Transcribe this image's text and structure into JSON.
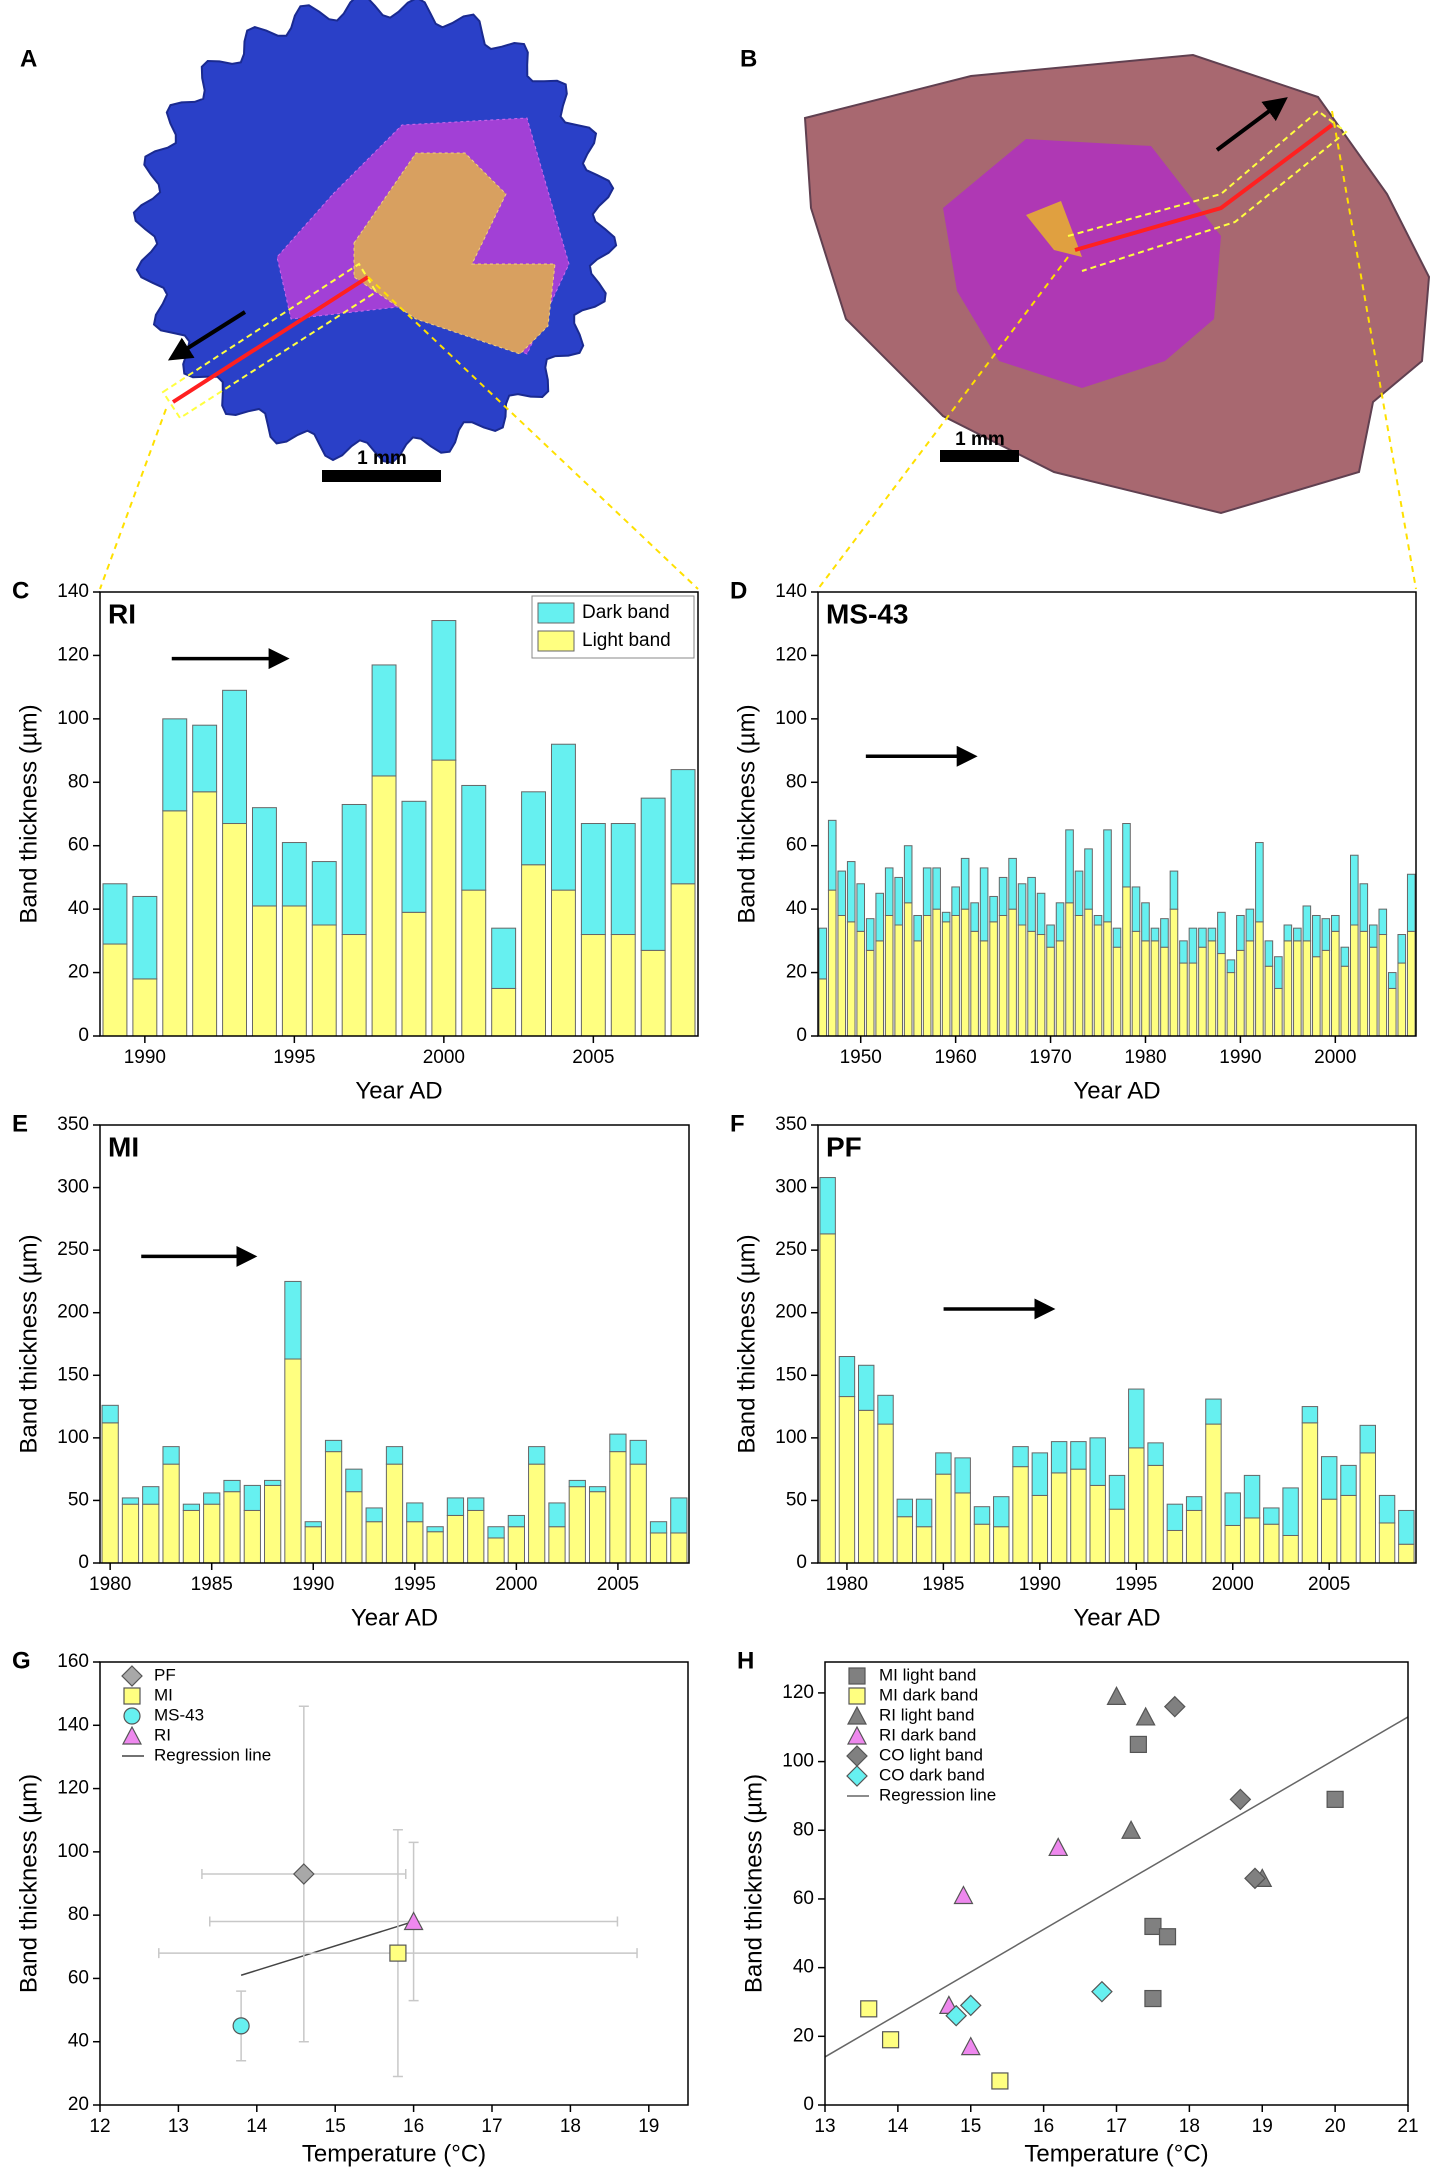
{
  "panels": [
    {
      "label": "A",
      "scale_bar": "1 mm"
    },
    {
      "label": "B",
      "scale_bar": "1 mm"
    }
  ],
  "chart_data": [
    {
      "type": "stacked_bar",
      "panel": "C",
      "title": "RI",
      "xlabel": "Year AD",
      "ylabel": "Band thickness (µm)",
      "x": [
        1989,
        1990,
        1991,
        1992,
        1993,
        1994,
        1995,
        1996,
        1997,
        1998,
        1999,
        2000,
        2001,
        2002,
        2003,
        2004,
        2005,
        2006,
        2007,
        2008
      ],
      "xlim": [
        1988.5,
        2008.5
      ],
      "xticks": [
        1990,
        1995,
        2000,
        2005
      ],
      "ylim": [
        0,
        140
      ],
      "yticks": [
        0,
        20,
        40,
        60,
        80,
        100,
        120,
        140
      ],
      "legend": "upper right",
      "series": [
        {
          "name": "Light band",
          "color": "#ffff80",
          "values": [
            29,
            18,
            71,
            77,
            67,
            41,
            41,
            35,
            32,
            82,
            39,
            87,
            46,
            15,
            54,
            46,
            32,
            32,
            27,
            48
          ]
        },
        {
          "name": "Dark band",
          "color": "#66f0f0",
          "values": [
            19,
            26,
            29,
            21,
            42,
            31,
            20,
            20,
            41,
            35,
            35,
            44,
            33,
            19,
            23,
            46,
            35,
            35,
            48,
            36
          ]
        }
      ]
    },
    {
      "type": "stacked_bar",
      "panel": "D",
      "title": "MS-43",
      "xlabel": "Year AD",
      "ylabel": "Band thickness (µm)",
      "x": [
        1946,
        1947,
        1948,
        1949,
        1950,
        1951,
        1952,
        1953,
        1954,
        1955,
        1956,
        1957,
        1958,
        1959,
        1960,
        1961,
        1962,
        1963,
        1964,
        1965,
        1966,
        1967,
        1968,
        1969,
        1970,
        1971,
        1972,
        1973,
        1974,
        1975,
        1976,
        1977,
        1978,
        1979,
        1980,
        1981,
        1982,
        1983,
        1984,
        1985,
        1986,
        1987,
        1988,
        1989,
        1990,
        1991,
        1992,
        1993,
        1994,
        1995,
        1996,
        1997,
        1998,
        1999,
        2000,
        2001,
        2002,
        2003,
        2004,
        2005,
        2006,
        2007,
        2008
      ],
      "xlim": [
        1945.5,
        2008.5
      ],
      "xticks": [
        1950,
        1960,
        1970,
        1980,
        1990,
        2000
      ],
      "ylim": [
        0,
        140
      ],
      "yticks": [
        0,
        20,
        40,
        60,
        80,
        100,
        120,
        140
      ],
      "series": [
        {
          "color": "#ffff80",
          "values": [
            18,
            46,
            38,
            36,
            33,
            27,
            30,
            38,
            35,
            42,
            30,
            38,
            40,
            36,
            38,
            40,
            33,
            30,
            36,
            38,
            40,
            35,
            33,
            32,
            28,
            30,
            42,
            38,
            40,
            35,
            36,
            28,
            47,
            33,
            30,
            30,
            28,
            40,
            23,
            23,
            28,
            30,
            26,
            20,
            27,
            30,
            36,
            22,
            15,
            30,
            30,
            30,
            25,
            27,
            33,
            22,
            35,
            33,
            28,
            32,
            15,
            23,
            33
          ]
        },
        {
          "color": "#66f0f0",
          "values": [
            16,
            22,
            14,
            19,
            15,
            10,
            15,
            15,
            15,
            18,
            8,
            15,
            13,
            3,
            9,
            16,
            9,
            23,
            8,
            12,
            16,
            13,
            17,
            13,
            7,
            12,
            23,
            14,
            19,
            3,
            29,
            6,
            20,
            14,
            12,
            4,
            9,
            12,
            7,
            11,
            6,
            4,
            13,
            4,
            11,
            10,
            25,
            8,
            10,
            5,
            4,
            11,
            13,
            10,
            5,
            6,
            22,
            15,
            7,
            8,
            5,
            9,
            18
          ]
        }
      ]
    },
    {
      "type": "stacked_bar",
      "panel": "E",
      "title": "MI",
      "xlabel": "Year AD",
      "ylabel": "Band thickness (µm)",
      "x": [
        1980,
        1981,
        1982,
        1983,
        1984,
        1985,
        1986,
        1987,
        1988,
        1989,
        1990,
        1991,
        1992,
        1993,
        1994,
        1995,
        1996,
        1997,
        1998,
        1999,
        2000,
        2001,
        2002,
        2003,
        2004,
        2005,
        2006,
        2007,
        2008
      ],
      "xlim": [
        1979.5,
        2008.5
      ],
      "xticks": [
        1980,
        1985,
        1990,
        1995,
        2000,
        2005
      ],
      "ylim": [
        0,
        350
      ],
      "yticks": [
        0,
        50,
        100,
        150,
        200,
        250,
        300,
        350
      ],
      "series": [
        {
          "color": "#ffff80",
          "values": [
            112,
            47,
            47,
            79,
            42,
            47,
            57,
            42,
            62,
            163,
            29,
            89,
            57,
            33,
            79,
            33,
            25,
            38,
            42,
            20,
            29,
            79,
            29,
            61,
            57,
            89,
            79,
            24,
            24
          ]
        },
        {
          "color": "#66f0f0",
          "values": [
            14,
            5,
            14,
            14,
            5,
            9,
            9,
            20,
            4,
            62,
            4,
            9,
            18,
            11,
            14,
            15,
            4,
            14,
            10,
            9,
            9,
            14,
            19,
            5,
            4,
            14,
            19,
            9,
            28
          ]
        }
      ]
    },
    {
      "type": "stacked_bar",
      "panel": "F",
      "title": "PF",
      "xlabel": "Year AD",
      "ylabel": "Band thickness (µm)",
      "x": [
        1979,
        1980,
        1981,
        1982,
        1983,
        1984,
        1985,
        1986,
        1987,
        1988,
        1989,
        1990,
        1991,
        1992,
        1993,
        1994,
        1995,
        1996,
        1997,
        1998,
        1999,
        2000,
        2001,
        2002,
        2003,
        2004,
        2005,
        2006,
        2007,
        2008,
        2009
      ],
      "xlim": [
        1978.5,
        2009.5
      ],
      "xticks": [
        1980,
        1985,
        1990,
        1995,
        2000,
        2005
      ],
      "ylim": [
        0,
        350
      ],
      "yticks": [
        0,
        50,
        100,
        150,
        200,
        250,
        300,
        350
      ],
      "series": [
        {
          "color": "#ffff80",
          "values": [
            263,
            133,
            122,
            111,
            37,
            29,
            71,
            56,
            31,
            29,
            77,
            54,
            72,
            75,
            62,
            43,
            92,
            78,
            26,
            42,
            111,
            30,
            36,
            31,
            22,
            112,
            51,
            54,
            88,
            32,
            15
          ]
        },
        {
          "color": "#66f0f0",
          "values": [
            45,
            32,
            36,
            23,
            14,
            22,
            17,
            28,
            14,
            24,
            16,
            34,
            25,
            22,
            38,
            27,
            47,
            18,
            21,
            11,
            20,
            26,
            34,
            13,
            38,
            13,
            34,
            24,
            22,
            22,
            27
          ]
        }
      ]
    },
    {
      "type": "scatter",
      "panel": "G",
      "xlabel": "Temperature (°C)",
      "ylabel": "Band thickness (µm)",
      "xlim": [
        12,
        19.5
      ],
      "xticks": [
        12,
        13,
        14,
        15,
        16,
        17,
        18,
        19
      ],
      "ylim": [
        20,
        160
      ],
      "yticks": [
        20,
        40,
        60,
        80,
        100,
        120,
        140,
        160
      ],
      "legend": "upper left",
      "series": [
        {
          "name": "PF",
          "color": "#a8a8a8",
          "marker": "diamond",
          "x": [
            14.6
          ],
          "values": [
            93
          ],
          "xerr": [
            1.3
          ],
          "yerr": [
            53
          ]
        },
        {
          "name": "MI",
          "color": "#ffff80",
          "marker": "square",
          "x": [
            15.8
          ],
          "values": [
            68
          ],
          "xerr": [
            3.05
          ],
          "yerr": [
            39
          ]
        },
        {
          "name": "MS-43",
          "color": "#66f0f0",
          "marker": "circle",
          "x": [
            13.8
          ],
          "values": [
            45
          ],
          "xerr": [
            null
          ],
          "yerr": [
            11
          ]
        },
        {
          "name": "RI",
          "color": "#ee88ee",
          "marker": "triangle",
          "x": [
            16
          ],
          "values": [
            78
          ],
          "xerr": [
            2.6
          ],
          "yerr": [
            25
          ]
        }
      ],
      "lines": [
        {
          "name": "Regression line",
          "color": "#444444",
          "x": [
            13.8,
            16
          ],
          "values": [
            61,
            78
          ]
        }
      ]
    },
    {
      "type": "scatter",
      "panel": "H",
      "xlabel": "Temperature (°C)",
      "ylabel": "Band thickness (µm)",
      "xlim": [
        13,
        21
      ],
      "xticks": [
        13,
        14,
        15,
        16,
        17,
        18,
        19,
        20,
        21
      ],
      "ylim": [
        0,
        129
      ],
      "yticks": [
        0,
        20,
        40,
        60,
        80,
        100,
        120
      ],
      "legend": "upper left",
      "series": [
        {
          "name": "MI light band",
          "color": "#808080",
          "marker": "square",
          "x": [
            17.3,
            17.5,
            17.7,
            17.5,
            20
          ],
          "values": [
            105,
            52,
            49,
            31,
            89
          ]
        },
        {
          "name": "MI dark band",
          "color": "#ffff80",
          "marker": "square",
          "x": [
            13.6,
            13.9,
            15.4
          ],
          "values": [
            28,
            19,
            7
          ]
        },
        {
          "name": "RI light band",
          "color": "#808080",
          "marker": "triangle",
          "x": [
            17,
            17.4,
            17.2,
            19
          ],
          "values": [
            119,
            113,
            80,
            66
          ]
        },
        {
          "name": "RI dark band",
          "color": "#ee88ee",
          "marker": "triangle",
          "x": [
            14.9,
            16.2,
            14.7,
            15
          ],
          "values": [
            61,
            75,
            29,
            17
          ]
        },
        {
          "name": "CO light band",
          "color": "#808080",
          "marker": "diamond",
          "x": [
            17.8,
            18.7,
            18.9
          ],
          "values": [
            116,
            89,
            66
          ]
        },
        {
          "name": "CO dark band",
          "color": "#66f0f0",
          "marker": "diamond",
          "x": [
            14.8,
            15,
            16.8
          ],
          "values": [
            26,
            29,
            33
          ]
        }
      ],
      "lines": [
        {
          "name": "Regression line",
          "color": "#666666",
          "x": [
            13,
            21
          ],
          "values": [
            14,
            113
          ]
        }
      ]
    }
  ]
}
